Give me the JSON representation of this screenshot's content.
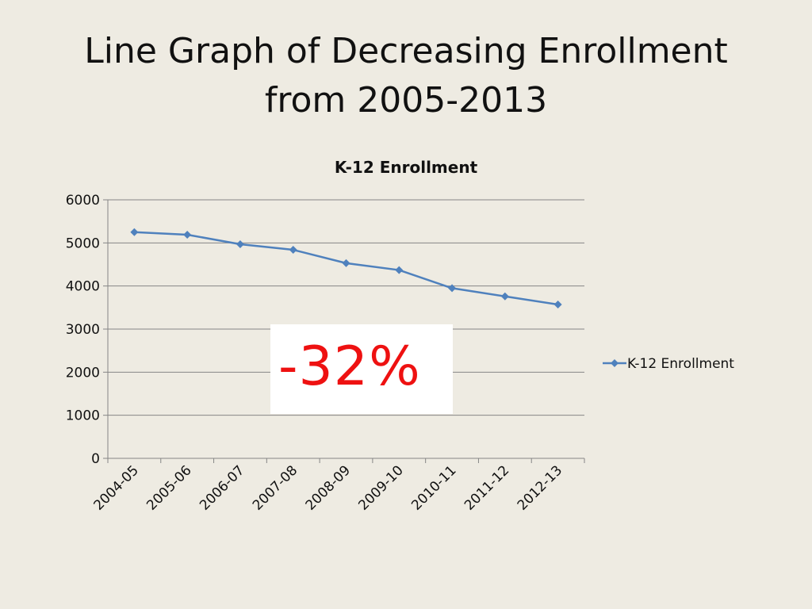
{
  "slide": {
    "title_line1": "Line Graph of Decreasing Enrollment",
    "title_line2": "from 2005-2013"
  },
  "callout": {
    "text": "-32%",
    "color": "#ee1111"
  },
  "colors": {
    "background": "#eeebe2",
    "series": "#4f81bd",
    "grid": "#868686"
  },
  "chart_data": {
    "type": "line",
    "title": "K-12 Enrollment",
    "xlabel": "",
    "ylabel": "",
    "categories": [
      "2004-05",
      "2005-06",
      "2006-07",
      "2007-08",
      "2008-09",
      "2009-10",
      "2010-11",
      "2011-12",
      "2012-13"
    ],
    "series": [
      {
        "name": "K-12 Enrollment",
        "values": [
          5250,
          5190,
          4970,
          4840,
          4530,
          4370,
          3950,
          3760,
          3570
        ],
        "marker": "diamond"
      }
    ],
    "ylim": [
      0,
      6000
    ],
    "yticks": [
      "0",
      "1000",
      "2000",
      "3000",
      "4000",
      "5000",
      "6000"
    ],
    "grid": true,
    "legend": "right"
  }
}
